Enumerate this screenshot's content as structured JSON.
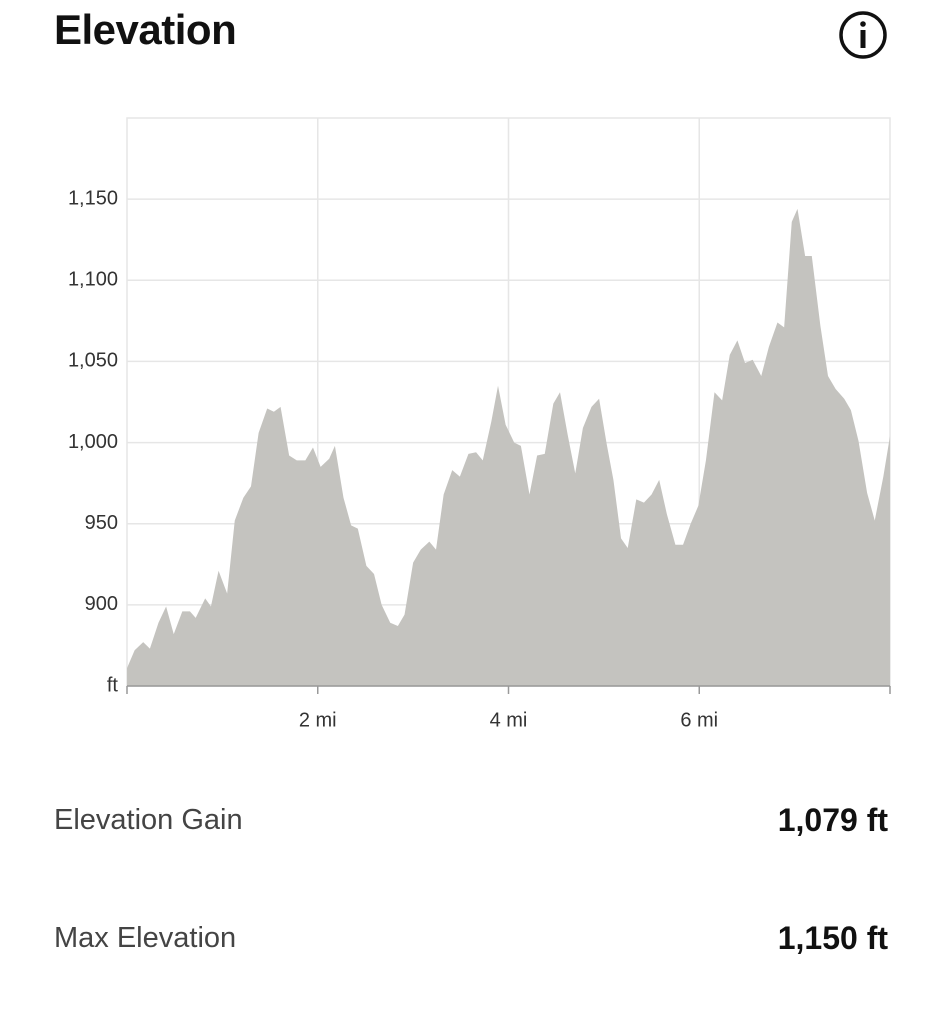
{
  "header": {
    "title": "Elevation"
  },
  "chart_data": {
    "type": "area",
    "color": "#c4c3bf",
    "grid": true,
    "x": [
      0,
      0.08,
      0.17,
      0.24,
      0.33,
      0.41,
      0.49,
      0.58,
      0.66,
      0.72,
      0.82,
      0.88,
      0.96,
      1.05,
      1.13,
      1.22,
      1.3,
      1.38,
      1.47,
      1.54,
      1.61,
      1.7,
      1.78,
      1.87,
      1.95,
      2.03,
      2.12,
      2.18,
      2.27,
      2.35,
      2.42,
      2.51,
      2.59,
      2.67,
      2.76,
      2.84,
      2.91,
      3.0,
      3.08,
      3.17,
      3.24,
      3.32,
      3.41,
      3.49,
      3.58,
      3.66,
      3.73,
      3.82,
      3.89,
      3.97,
      4.06,
      4.13,
      4.22,
      4.3,
      4.38,
      4.47,
      4.54,
      4.62,
      4.7,
      4.78,
      4.87,
      4.95,
      5.03,
      5.1,
      5.18,
      5.25,
      5.34,
      5.42,
      5.5,
      5.58,
      5.66,
      5.75,
      5.83,
      5.91,
      5.99,
      6.07,
      6.16,
      6.24,
      6.32,
      6.4,
      6.48,
      6.56,
      6.65,
      6.73,
      6.82,
      6.89,
      6.97,
      7.03,
      7.11,
      7.18,
      7.27,
      7.35,
      7.43,
      7.52,
      7.59,
      7.67,
      7.76,
      7.84,
      7.93,
      8.0
    ],
    "values": [
      861,
      872,
      877,
      873,
      889,
      899,
      882,
      896,
      896,
      892,
      904,
      899,
      921,
      907,
      952,
      966,
      973,
      1006,
      1021,
      1019,
      1022,
      992,
      989,
      989,
      997,
      985,
      990,
      998,
      966,
      949,
      947,
      924,
      919,
      900,
      889,
      887,
      894,
      926,
      934,
      939,
      934,
      968,
      983,
      979,
      993,
      994,
      989,
      1013,
      1035,
      1011,
      1000,
      998,
      968,
      992,
      993,
      1024,
      1031,
      1005,
      981,
      1009,
      1022,
      1027,
      999,
      977,
      941,
      935,
      965,
      963,
      968,
      977,
      956,
      937,
      937,
      950,
      961,
      989,
      1031,
      1026,
      1054,
      1063,
      1049,
      1051,
      1041,
      1059,
      1074,
      1071,
      1136,
      1144,
      1115,
      1115,
      1072,
      1041,
      1033,
      1027,
      1020,
      1001,
      969,
      952,
      979,
      1004
    ],
    "xlim": [
      0,
      8
    ],
    "ylim": [
      850,
      1200
    ],
    "xticks": [
      {
        "value": 2,
        "label": "2 mi"
      },
      {
        "value": 4,
        "label": "4 mi"
      },
      {
        "value": 6,
        "label": "6 mi"
      }
    ],
    "yticks": [
      {
        "value": 850,
        "label": "ft"
      },
      {
        "value": 900,
        "label": "900"
      },
      {
        "value": 950,
        "label": "950"
      },
      {
        "value": 1000,
        "label": "1,000"
      },
      {
        "value": 1050,
        "label": "1,050"
      },
      {
        "value": 1100,
        "label": "1,100"
      },
      {
        "value": 1150,
        "label": "1,150"
      }
    ]
  },
  "stats": [
    {
      "label": "Elevation Gain",
      "value": "1,079 ft"
    },
    {
      "label": "Max Elevation",
      "value": "1,150 ft"
    }
  ]
}
